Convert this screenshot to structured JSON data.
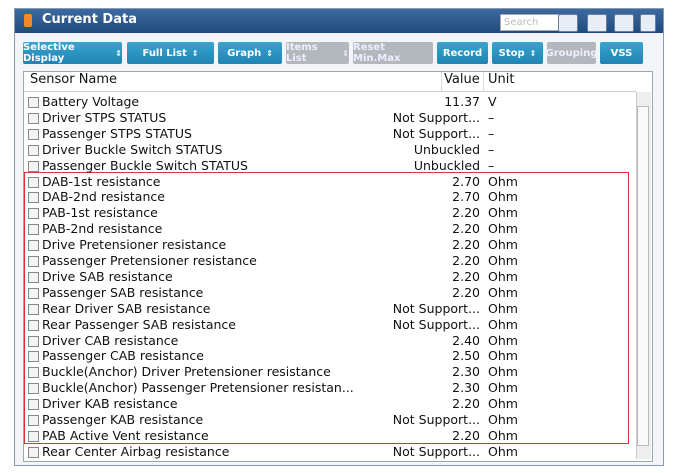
{
  "window": {
    "title": "Current Data",
    "search_placeholder": "Search"
  },
  "toolbar": [
    {
      "label": "Selective Display",
      "dropdown": true,
      "enabled": true
    },
    {
      "label": "Full List",
      "dropdown": true,
      "enabled": true
    },
    {
      "label": "Graph",
      "dropdown": true,
      "enabled": true
    },
    {
      "label": "Items List",
      "dropdown": true,
      "enabled": false
    },
    {
      "label": "Reset Min.Max",
      "dropdown": false,
      "enabled": false
    },
    {
      "label": "Record",
      "dropdown": false,
      "enabled": true
    },
    {
      "label": "Stop",
      "dropdown": true,
      "enabled": true
    },
    {
      "label": "Grouping",
      "dropdown": false,
      "enabled": false
    },
    {
      "label": "VSS",
      "dropdown": false,
      "enabled": true
    }
  ],
  "table": {
    "columns": [
      "Sensor Name",
      "Value",
      "Unit"
    ],
    "rows": [
      [
        "Battery Voltage",
        "11.37",
        "V"
      ],
      [
        "Driver STPS STATUS",
        "Not Support...",
        "–"
      ],
      [
        "Passenger STPS STATUS",
        "Not Support...",
        "–"
      ],
      [
        "Driver Buckle Switch STATUS",
        "Unbuckled",
        "–"
      ],
      [
        "Passenger Buckle Switch STATUS",
        "Unbuckled",
        "–"
      ],
      [
        "DAB-1st resistance",
        "2.70",
        "Ohm"
      ],
      [
        "DAB-2nd resistance",
        "2.70",
        "Ohm"
      ],
      [
        "PAB-1st resistance",
        "2.20",
        "Ohm"
      ],
      [
        "PAB-2nd resistance",
        "2.20",
        "Ohm"
      ],
      [
        "Drive Pretensioner resistance",
        "2.20",
        "Ohm"
      ],
      [
        "Passenger Pretensioner resistance",
        "2.20",
        "Ohm"
      ],
      [
        "Drive SAB resistance",
        "2.20",
        "Ohm"
      ],
      [
        "Passenger SAB resistance",
        "2.20",
        "Ohm"
      ],
      [
        "Rear Driver SAB resistance",
        "Not Support...",
        "Ohm"
      ],
      [
        "Rear Passenger SAB resistance",
        "Not Support...",
        "Ohm"
      ],
      [
        "Driver CAB resistance",
        "2.40",
        "Ohm"
      ],
      [
        "Passenger CAB resistance",
        "2.50",
        "Ohm"
      ],
      [
        "Buckle(Anchor) Driver Pretensioner resistance",
        "2.30",
        "Ohm"
      ],
      [
        "Buckle(Anchor) Passenger Pretensioner resistan...",
        "2.30",
        "Ohm"
      ],
      [
        "Driver KAB resistance",
        "2.20",
        "Ohm"
      ],
      [
        "Passenger KAB resistance",
        "Not Support...",
        "Ohm"
      ],
      [
        "PAB Active Vent resistance",
        "2.20",
        "Ohm"
      ],
      [
        "Rear Center Airbag resistance",
        "Not Support...",
        "Ohm"
      ]
    ]
  }
}
